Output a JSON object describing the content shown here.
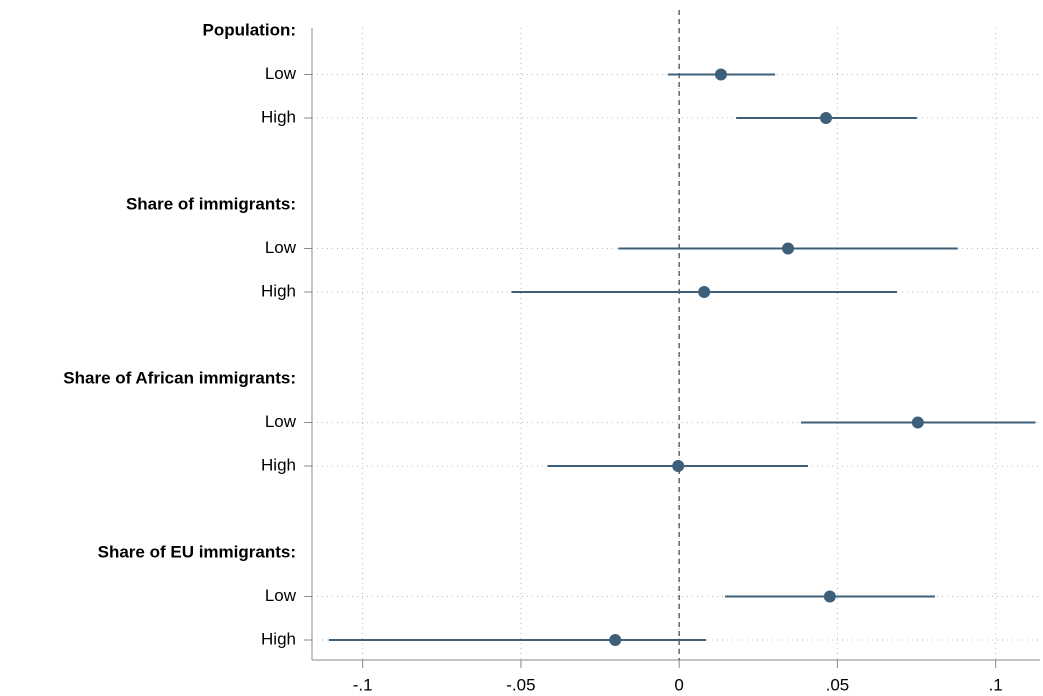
{
  "chart_data": {
    "type": "coefplot",
    "color": "#3e5f7a",
    "grid": true,
    "ref_line": 0,
    "xlim": [
      -0.116,
      0.114
    ],
    "xticks": [
      {
        "value": -0.1,
        "label": "-.1"
      },
      {
        "value": -0.05,
        "label": "-.05"
      },
      0,
      {
        "value": 0.05,
        "label": ".05"
      },
      {
        "value": 0.1,
        "label": ".1"
      }
    ],
    "groups": [
      {
        "name": "Population:",
        "categories": [
          "Low",
          "High"
        ],
        "values": [
          0.0132,
          0.0464
        ],
        "ci_low": [
          -0.0035,
          0.018
        ],
        "ci_high": [
          0.0303,
          0.0751
        ]
      },
      {
        "name": "Share of immigrants:",
        "categories": [
          "Low",
          "High"
        ],
        "values": [
          0.0344,
          0.0079
        ],
        "ci_low": [
          -0.0192,
          -0.053
        ],
        "ci_high": [
          0.088,
          0.0688
        ]
      },
      {
        "name": "Share of African immigrants:",
        "categories": [
          "Low",
          "High"
        ],
        "values": [
          0.0754,
          -0.0003
        ],
        "ci_low": [
          0.0385,
          -0.0416
        ],
        "ci_high": [
          0.1126,
          0.0407
        ]
      },
      {
        "name": "Share of EU immigrants:",
        "categories": [
          "Low",
          "High"
        ],
        "values": [
          0.0476,
          -0.0202
        ],
        "ci_low": [
          0.0145,
          -0.1107
        ],
        "ci_high": [
          0.0808,
          0.0085
        ]
      }
    ]
  }
}
